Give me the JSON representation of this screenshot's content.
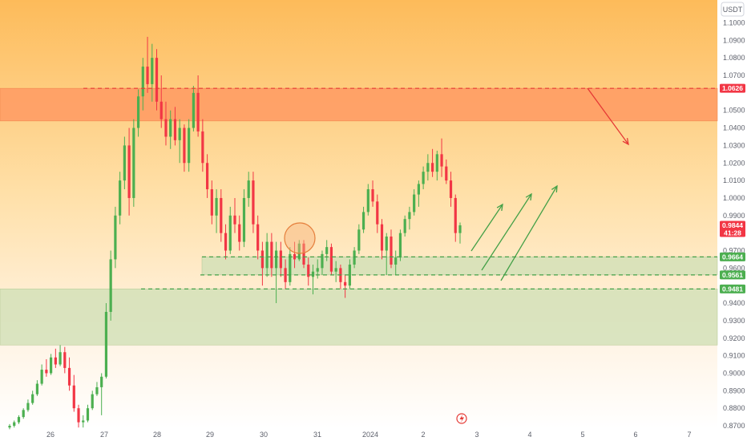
{
  "chart_data": {
    "type": "candlestick",
    "currency_unit": "USDT",
    "y_axis": {
      "ticks": [
        "1.1000",
        "1.0900",
        "1.0800",
        "1.0700",
        "1.0500",
        "1.0400",
        "1.0300",
        "1.0200",
        "1.0100",
        "1.0000",
        "0.9900",
        "0.9700",
        "0.9600",
        "0.9400",
        "0.9300",
        "0.9200",
        "0.9100",
        "0.9000",
        "0.8900",
        "0.8800",
        "0.8700"
      ],
      "ylim": [
        0.868,
        1.102
      ]
    },
    "x_axis": {
      "ticks": [
        "26",
        "27",
        "28",
        "29",
        "30",
        "31",
        "2024",
        "2",
        "3",
        "4",
        "5",
        "6",
        "7"
      ]
    },
    "price_tags": [
      {
        "value": 1.0626,
        "label": "1.0626",
        "color": "#f23645"
      },
      {
        "value": 0.9844,
        "label": "0.9844",
        "sub": "41:28",
        "color": "#f23645"
      },
      {
        "value": 0.9664,
        "label": "0.9664",
        "color": "#4caf50"
      },
      {
        "value": 0.9561,
        "label": "0.9561",
        "color": "#4caf50"
      },
      {
        "value": 0.9481,
        "label": "0.9481",
        "color": "#4caf50"
      }
    ],
    "zones": [
      {
        "type": "resistance",
        "from": 1.044,
        "to": 1.0626,
        "color": "#ff9a63"
      },
      {
        "type": "support",
        "from": 0.9161,
        "to": 0.9481,
        "color": "#d1e0b7"
      },
      {
        "type": "support",
        "from": 0.9561,
        "to": 0.9664,
        "color": "#d1e0b7"
      }
    ],
    "levels": [
      {
        "value": 1.0626,
        "color": "#e53935",
        "style": "dashed"
      },
      {
        "value": 0.9664,
        "color": "#43a047",
        "style": "dashed"
      },
      {
        "value": 0.9561,
        "color": "#43a047",
        "style": "dashed"
      },
      {
        "value": 0.9481,
        "color": "#43a047",
        "style": "dashed"
      }
    ],
    "candles": [
      [
        0.869,
        0.871,
        0.868,
        0.87
      ],
      [
        0.87,
        0.873,
        0.869,
        0.872
      ],
      [
        0.872,
        0.876,
        0.871,
        0.875
      ],
      [
        0.875,
        0.88,
        0.874,
        0.879
      ],
      [
        0.879,
        0.885,
        0.878,
        0.883
      ],
      [
        0.883,
        0.89,
        0.882,
        0.888
      ],
      [
        0.888,
        0.896,
        0.887,
        0.894
      ],
      [
        0.894,
        0.905,
        0.893,
        0.902
      ],
      [
        0.902,
        0.908,
        0.898,
        0.9
      ],
      [
        0.9,
        0.911,
        0.899,
        0.909
      ],
      [
        0.909,
        0.914,
        0.903,
        0.905
      ],
      [
        0.905,
        0.916,
        0.904,
        0.912
      ],
      [
        0.912,
        0.915,
        0.9,
        0.903
      ],
      [
        0.903,
        0.909,
        0.89,
        0.893
      ],
      [
        0.893,
        0.899,
        0.878,
        0.88
      ],
      [
        0.88,
        0.882,
        0.869,
        0.872
      ],
      [
        0.872,
        0.876,
        0.869,
        0.873
      ],
      [
        0.873,
        0.882,
        0.872,
        0.88
      ],
      [
        0.88,
        0.89,
        0.879,
        0.888
      ],
      [
        0.888,
        0.895,
        0.887,
        0.892
      ],
      [
        0.892,
        0.9,
        0.876,
        0.898
      ],
      [
        0.898,
        0.94,
        0.897,
        0.935
      ],
      [
        0.935,
        0.97,
        0.93,
        0.965
      ],
      [
        0.965,
        0.995,
        0.96,
        0.99
      ],
      [
        0.99,
        1.015,
        0.985,
        1.01
      ],
      [
        1.01,
        1.035,
        1.005,
        1.03
      ],
      [
        1.03,
        1.04,
        0.99,
        1.0
      ],
      [
        1.0,
        1.045,
        0.995,
        1.04
      ],
      [
        1.04,
        1.062,
        1.035,
        1.058
      ],
      [
        1.058,
        1.08,
        1.05,
        1.075
      ],
      [
        1.075,
        1.092,
        1.06,
        1.065
      ],
      [
        1.065,
        1.088,
        1.055,
        1.08
      ],
      [
        1.08,
        1.085,
        1.05,
        1.055
      ],
      [
        1.055,
        1.07,
        1.04,
        1.045
      ],
      [
        1.045,
        1.055,
        1.03,
        1.035
      ],
      [
        1.035,
        1.05,
        1.028,
        1.045
      ],
      [
        1.045,
        1.052,
        1.03,
        1.033
      ],
      [
        1.033,
        1.045,
        1.02,
        1.04
      ],
      [
        1.04,
        1.042,
        1.015,
        1.02
      ],
      [
        1.02,
        1.045,
        1.015,
        1.04
      ],
      [
        1.04,
        1.064,
        1.038,
        1.06
      ],
      [
        1.06,
        1.07,
        1.035,
        1.038
      ],
      [
        1.038,
        1.045,
        1.015,
        1.02
      ],
      [
        1.02,
        1.025,
        1.0,
        1.005
      ],
      [
        1.005,
        1.01,
        0.985,
        0.99
      ],
      [
        0.99,
        1.005,
        0.98,
        1.0
      ],
      [
        1.0,
        1.005,
        0.975,
        0.98
      ],
      [
        0.98,
        0.985,
        0.965,
        0.97
      ],
      [
        0.97,
        0.995,
        0.968,
        0.99
      ],
      [
        0.99,
        1.0,
        0.98,
        0.985
      ],
      [
        0.985,
        0.99,
        0.97,
        0.975
      ],
      [
        0.975,
        1.005,
        0.972,
        1.0
      ],
      [
        1.0,
        1.015,
        0.995,
        1.01
      ],
      [
        1.01,
        1.015,
        0.98,
        0.985
      ],
      [
        0.985,
        0.99,
        0.965,
        0.97
      ],
      [
        0.97,
        0.975,
        0.95,
        0.96
      ],
      [
        0.96,
        0.98,
        0.955,
        0.975
      ],
      [
        0.975,
        0.98,
        0.955,
        0.96
      ],
      [
        0.96,
        0.975,
        0.94,
        0.97
      ],
      [
        0.97,
        0.975,
        0.955,
        0.96
      ],
      [
        0.96,
        0.965,
        0.948,
        0.952
      ],
      [
        0.952,
        0.972,
        0.95,
        0.968
      ],
      [
        0.968,
        0.975,
        0.96,
        0.965
      ],
      [
        0.965,
        0.976,
        0.964,
        0.974
      ],
      [
        0.974,
        0.976,
        0.96,
        0.962
      ],
      [
        0.962,
        0.966,
        0.95,
        0.955
      ],
      [
        0.955,
        0.962,
        0.945,
        0.958
      ],
      [
        0.958,
        0.965,
        0.954,
        0.96
      ],
      [
        0.96,
        0.97,
        0.956,
        0.968
      ],
      [
        0.968,
        0.976,
        0.964,
        0.972
      ],
      [
        0.972,
        0.974,
        0.956,
        0.958
      ],
      [
        0.958,
        0.964,
        0.952,
        0.96
      ],
      [
        0.96,
        0.962,
        0.948,
        0.952
      ],
      [
        0.952,
        0.956,
        0.943,
        0.95
      ],
      [
        0.95,
        0.965,
        0.948,
        0.962
      ],
      [
        0.962,
        0.972,
        0.96,
        0.97
      ],
      [
        0.97,
        0.985,
        0.968,
        0.982
      ],
      [
        0.982,
        0.995,
        0.98,
        0.992
      ],
      [
        0.992,
        1.008,
        0.99,
        1.005
      ],
      [
        1.005,
        1.01,
        0.995,
        0.998
      ],
      [
        0.998,
        1.002,
        0.98,
        0.985
      ],
      [
        0.985,
        0.988,
        0.965,
        0.97
      ],
      [
        0.97,
        0.98,
        0.956,
        0.978
      ],
      [
        0.978,
        0.982,
        0.96,
        0.962
      ],
      [
        0.962,
        0.97,
        0.956,
        0.966
      ],
      [
        0.966,
        0.982,
        0.964,
        0.98
      ],
      [
        0.98,
        0.99,
        0.978,
        0.988
      ],
      [
        0.988,
        0.995,
        0.982,
        0.992
      ],
      [
        0.992,
        1.005,
        0.99,
        1.002
      ],
      [
        1.002,
        1.01,
        0.995,
        1.008
      ],
      [
        1.008,
        1.018,
        1.005,
        1.015
      ],
      [
        1.015,
        1.025,
        1.01,
        1.02
      ],
      [
        1.02,
        1.028,
        1.012,
        1.015
      ],
      [
        1.015,
        1.027,
        1.01,
        1.025
      ],
      [
        1.025,
        1.034,
        1.012,
        1.018
      ],
      [
        1.018,
        1.022,
        1.008,
        1.01
      ],
      [
        1.01,
        1.015,
        0.995,
        1.0
      ],
      [
        1.0,
        1.002,
        0.975,
        0.98
      ],
      [
        0.98,
        0.986,
        0.974,
        0.9844
      ]
    ],
    "annotations": [
      {
        "type": "arrow",
        "color": "#e53935",
        "from": [
          1.06
        ],
        "to": [
          1.03
        ]
      },
      {
        "type": "arrow",
        "color": "#43a047",
        "count": 3
      },
      {
        "type": "circle",
        "color": "#e57f3c"
      }
    ]
  },
  "icons": {
    "replay": "lightning-replay-icon"
  }
}
